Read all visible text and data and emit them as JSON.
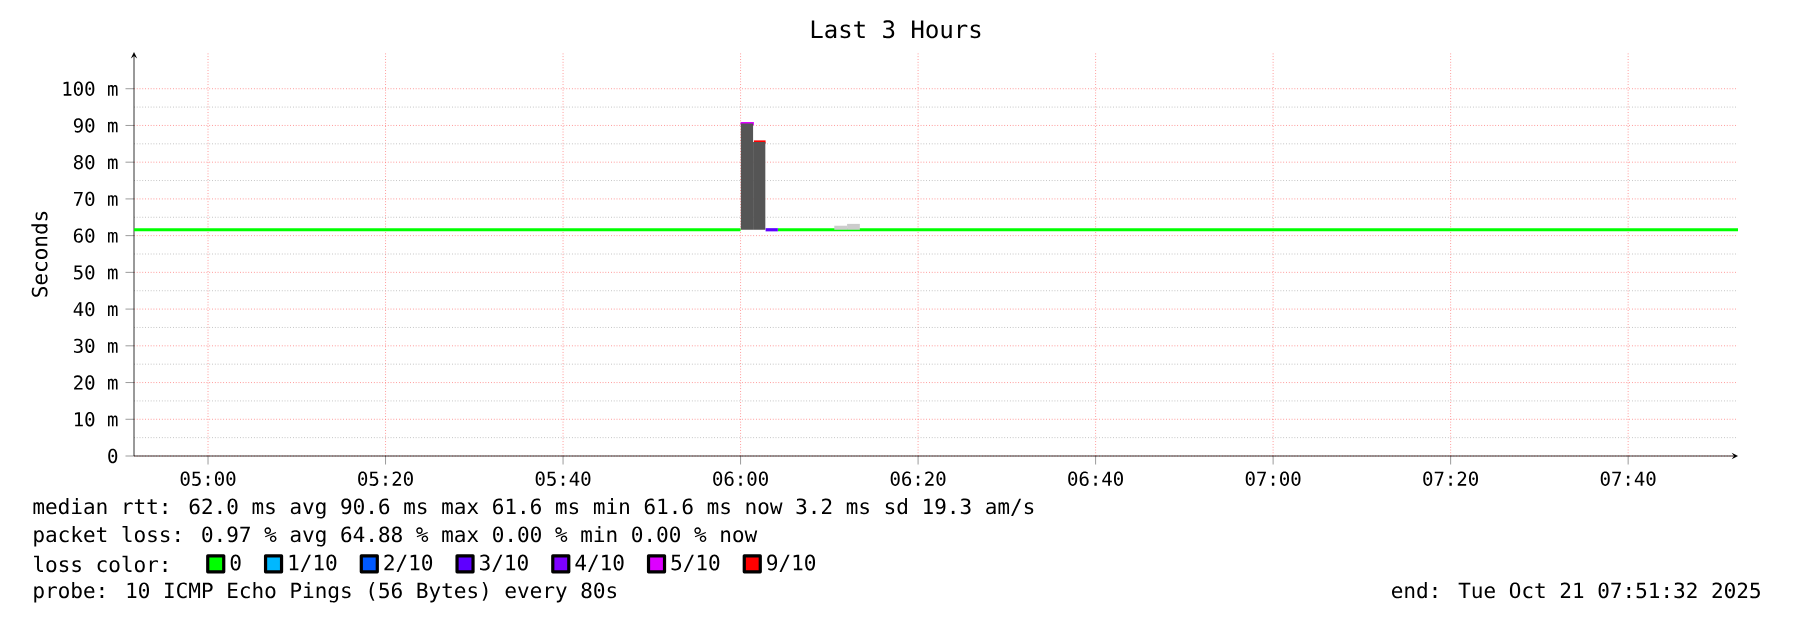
{
  "chart_data": {
    "type": "line",
    "title": "Last 3 Hours",
    "ylabel": "Seconds",
    "legend_title": "loss color:",
    "annotations": [
      "median rtt:  62.0 ms avg  90.6 ms max  61.6 ms min  61.6 ms now  3.2 ms sd  19.3   am/s",
      "packet loss: 0.97 % avg  64.88 % max  0.00 % min  0.00 % now",
      "probe:       10 ICMP Echo Pings (56 Bytes) every 80s",
      "end: Tue Oct 21 07:51:32 2025"
    ],
    "xlim": [
      4.861,
      7.873
    ],
    "xticks": [
      {
        "value": 5,
        "label": "05:00"
      },
      {
        "value": 5.333333,
        "label": "05:20"
      },
      {
        "value": 5.666667,
        "label": "05:40"
      },
      {
        "value": 6,
        "label": "06:00"
      },
      {
        "value": 6.333333,
        "label": "06:20"
      },
      {
        "value": 6.666667,
        "label": "06:40"
      },
      {
        "value": 7,
        "label": "07:00"
      },
      {
        "value": 7.333333,
        "label": "07:20"
      },
      {
        "value": 7.666667,
        "label": "07:40"
      }
    ],
    "ylim": [
      0,
      110
    ],
    "yticks": [
      0,
      {
        "value": 10,
        "label": "10 m"
      },
      {
        "value": 20,
        "label": "20 m"
      },
      {
        "value": 30,
        "label": "30 m"
      },
      {
        "value": 40,
        "label": "40 m"
      },
      {
        "value": 50,
        "label": "50 m"
      },
      {
        "value": 60,
        "label": "60 m"
      },
      {
        "value": 70,
        "label": "70 m"
      },
      {
        "value": 80,
        "label": "80 m"
      },
      {
        "value": 90,
        "label": "90 m"
      },
      {
        "value": 100,
        "label": "100 m"
      }
    ],
    "grid": true,
    "legend": "bottom",
    "series": [
      {
        "type": "bar",
        "color": "#555555",
        "x": [
          6.012,
          6.035
        ],
        "base": [
          61.6,
          61.6
        ],
        "values": [
          28.9,
          23.9
        ]
      },
      {
        "type": "bar",
        "color": "#cccccc",
        "x": [
          6.188,
          6.212
        ],
        "base": [
          61.6,
          61.6
        ],
        "values": [
          1.1,
          1.6
        ]
      },
      {
        "name": "0",
        "color": "#00ff00",
        "x": [
          4.861,
          6.0,
          6.035,
          6.07,
          7.873
        ],
        "values": [
          61.6,
          61.6,
          null,
          61.6,
          61.6
        ]
      },
      {
        "name": "1/10",
        "color": "#00b8ff"
      },
      {
        "name": "2/10",
        "color": "#0059ff"
      },
      {
        "name": "3/10",
        "color": "#5e00ff",
        "x": [
          6.047,
          6.07
        ],
        "values": [
          61.6,
          61.6
        ]
      },
      {
        "name": "4/10",
        "color": "#7e00ff"
      },
      {
        "name": "5/10",
        "color": "#dd00ff",
        "x": [
          6.0,
          6.025
        ],
        "values": [
          90.5,
          90.5
        ]
      },
      {
        "name": "9/10",
        "color": "#ff0000",
        "x": [
          6.025,
          6.047
        ],
        "values": [
          85.5,
          85.5
        ]
      }
    ]
  }
}
